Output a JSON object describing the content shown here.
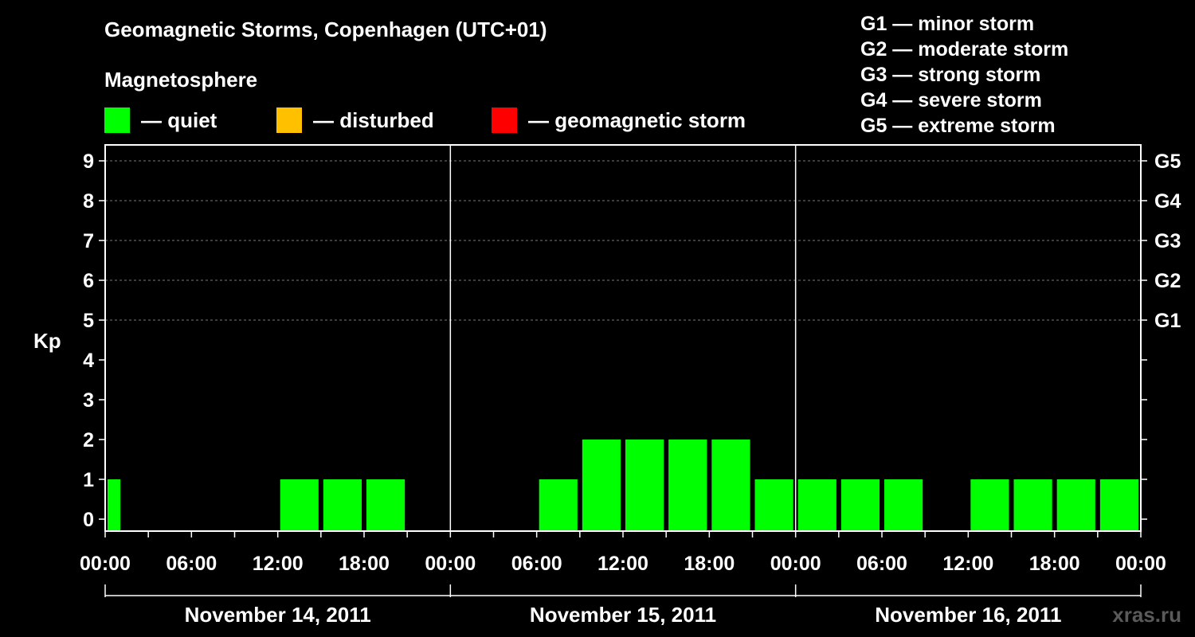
{
  "chart_data": {
    "type": "bar",
    "title": "Geomagnetic Storms, Copenhagen (UTC+01)",
    "subtitle": "Magnetosphere",
    "ylabel": "Kp",
    "ylim": [
      0,
      9
    ],
    "yticks": [
      "0",
      "1",
      "2",
      "3",
      "4",
      "5",
      "6",
      "7",
      "8",
      "9"
    ],
    "right_ticks": [
      {
        "kp": 5,
        "label": "G1"
      },
      {
        "kp": 6,
        "label": "G2"
      },
      {
        "kp": 7,
        "label": "G3"
      },
      {
        "kp": 8,
        "label": "G4"
      },
      {
        "kp": 9,
        "label": "G5"
      }
    ],
    "xtick_labels": [
      "00:00",
      "06:00",
      "12:00",
      "18:00",
      "00:00",
      "06:00",
      "12:00",
      "18:00",
      "00:00",
      "06:00",
      "12:00",
      "18:00",
      "00:00"
    ],
    "days": [
      "November 14, 2011",
      "November 15, 2011",
      "November 16, 2011"
    ],
    "hours_per_bar": 3,
    "bars": [
      {
        "day": 0,
        "start_hour": 0,
        "value": 1,
        "partial_hours": 1
      },
      {
        "day": 0,
        "start_hour": 3,
        "value": 0
      },
      {
        "day": 0,
        "start_hour": 6,
        "value": 0
      },
      {
        "day": 0,
        "start_hour": 9,
        "value": 0
      },
      {
        "day": 0,
        "start_hour": 12,
        "value": 1
      },
      {
        "day": 0,
        "start_hour": 15,
        "value": 1
      },
      {
        "day": 0,
        "start_hour": 18,
        "value": 1
      },
      {
        "day": 0,
        "start_hour": 21,
        "value": 0
      },
      {
        "day": 1,
        "start_hour": 0,
        "value": 0
      },
      {
        "day": 1,
        "start_hour": 3,
        "value": 0
      },
      {
        "day": 1,
        "start_hour": 6,
        "value": 1
      },
      {
        "day": 1,
        "start_hour": 9,
        "value": 2
      },
      {
        "day": 1,
        "start_hour": 12,
        "value": 2
      },
      {
        "day": 1,
        "start_hour": 15,
        "value": 2
      },
      {
        "day": 1,
        "start_hour": 18,
        "value": 2
      },
      {
        "day": 1,
        "start_hour": 21,
        "value": 1
      },
      {
        "day": 2,
        "start_hour": 0,
        "value": 1
      },
      {
        "day": 2,
        "start_hour": 3,
        "value": 1
      },
      {
        "day": 2,
        "start_hour": 6,
        "value": 1
      },
      {
        "day": 2,
        "start_hour": 9,
        "value": 0
      },
      {
        "day": 2,
        "start_hour": 12,
        "value": 1
      },
      {
        "day": 2,
        "start_hour": 15,
        "value": 1
      },
      {
        "day": 2,
        "start_hour": 18,
        "value": 1
      },
      {
        "day": 2,
        "start_hour": 21,
        "value": 1
      }
    ],
    "grid": true,
    "legend": {
      "title": "Magnetosphere",
      "items": [
        {
          "label": "— quiet",
          "color": "#00ff00"
        },
        {
          "label": "— disturbed",
          "color": "#ffc000"
        },
        {
          "label": "— geomagnetic storm",
          "color": "#ff0000"
        }
      ]
    },
    "storm_scale": [
      "G1 — minor storm",
      "G2 — moderate storm",
      "G3 — strong storm",
      "G4 — severe storm",
      "G5 — extreme storm"
    ],
    "bar_color": "#00ff00"
  },
  "watermark": "xras.ru"
}
